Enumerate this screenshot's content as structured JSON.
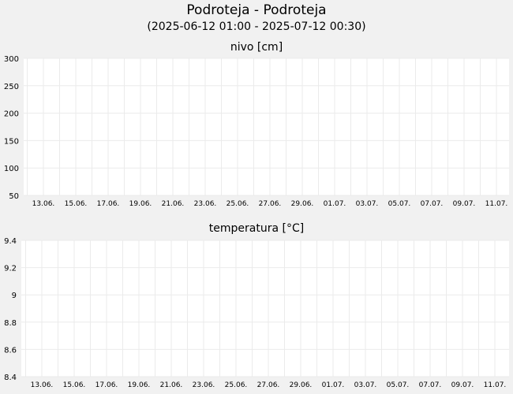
{
  "header": {
    "title": "Podroteja - Podroteja",
    "subtitle": "(2025-06-12 01:00 - 2025-07-12 00:30)"
  },
  "colors": {
    "background": "#f1f1f1",
    "plot_area": "#ffffff",
    "grid": "#ebebeb"
  },
  "chart_data": [
    {
      "type": "line",
      "title": "nivo [cm]",
      "xlabel": "",
      "ylabel": "",
      "ylim": [
        50,
        300
      ],
      "yticks": [
        {
          "value": 300,
          "label": "300"
        },
        {
          "value": 250,
          "label": "250"
        },
        {
          "value": 200,
          "label": "200"
        },
        {
          "value": 150,
          "label": "150"
        },
        {
          "value": 100,
          "label": "100"
        },
        {
          "value": 50,
          "label": "50"
        }
      ],
      "xticks": [
        "13.06.",
        "15.06.",
        "17.06.",
        "19.06.",
        "21.06.",
        "23.06.",
        "25.06.",
        "27.06.",
        "29.06.",
        "01.07.",
        "03.07.",
        "05.07.",
        "07.07.",
        "09.07.",
        "11.07."
      ],
      "grid": true,
      "series": []
    },
    {
      "type": "line",
      "title": "temperatura [°C]",
      "xlabel": "",
      "ylabel": "",
      "ylim": [
        8.4,
        9.4
      ],
      "yticks": [
        {
          "value": 9.4,
          "label": "9.4"
        },
        {
          "value": 9.2,
          "label": "9.2"
        },
        {
          "value": 9,
          "label": "9"
        },
        {
          "value": 8.8,
          "label": "8.8"
        },
        {
          "value": 8.6,
          "label": "8.6"
        },
        {
          "value": 8.4,
          "label": "8.4"
        }
      ],
      "xticks": [
        "13.06.",
        "15.06.",
        "17.06.",
        "19.06.",
        "21.06.",
        "23.06.",
        "25.06.",
        "27.06.",
        "29.06.",
        "01.07.",
        "03.07.",
        "05.07.",
        "07.07.",
        "09.07.",
        "11.07."
      ],
      "grid": true,
      "series": []
    }
  ]
}
